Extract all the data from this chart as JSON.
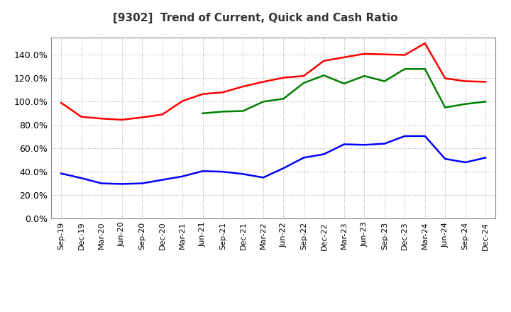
{
  "title": "[9302]  Trend of Current, Quick and Cash Ratio",
  "x_labels": [
    "Sep-19",
    "Dec-19",
    "Mar-20",
    "Jun-20",
    "Sep-20",
    "Dec-20",
    "Mar-21",
    "Jun-21",
    "Sep-21",
    "Dec-21",
    "Mar-22",
    "Jun-22",
    "Sep-22",
    "Dec-22",
    "Mar-23",
    "Jun-23",
    "Sep-23",
    "Dec-23",
    "Mar-24",
    "Jun-24",
    "Sep-24",
    "Dec-24"
  ],
  "current_ratio": [
    99.0,
    87.0,
    85.5,
    84.5,
    86.5,
    89.0,
    100.5,
    106.5,
    108.0,
    113.0,
    117.0,
    120.5,
    122.0,
    135.0,
    138.0,
    141.0,
    140.5,
    140.0,
    150.0,
    120.0,
    117.5,
    117.0
  ],
  "quick_ratio": [
    null,
    null,
    null,
    null,
    null,
    null,
    null,
    90.0,
    91.5,
    92.0,
    100.0,
    102.5,
    116.0,
    122.5,
    115.5,
    122.0,
    117.5,
    128.0,
    128.0,
    95.0,
    98.0,
    100.0
  ],
  "cash_ratio": [
    38.5,
    34.5,
    30.0,
    29.5,
    30.0,
    33.0,
    36.0,
    40.5,
    40.0,
    38.0,
    35.0,
    43.0,
    52.0,
    55.0,
    63.5,
    63.0,
    64.0,
    70.5,
    70.5,
    51.0,
    48.0,
    52.0
  ],
  "current_color": "#FF0000",
  "quick_color": "#008000",
  "cash_color": "#0000FF",
  "ylim": [
    0,
    155
  ],
  "yticks": [
    0,
    20,
    40,
    60,
    80,
    100,
    120,
    140
  ],
  "bg_color": "#FFFFFF",
  "plot_bg_color": "#FFFFFF",
  "grid_color": "#AAAAAA",
  "line_width": 1.8
}
